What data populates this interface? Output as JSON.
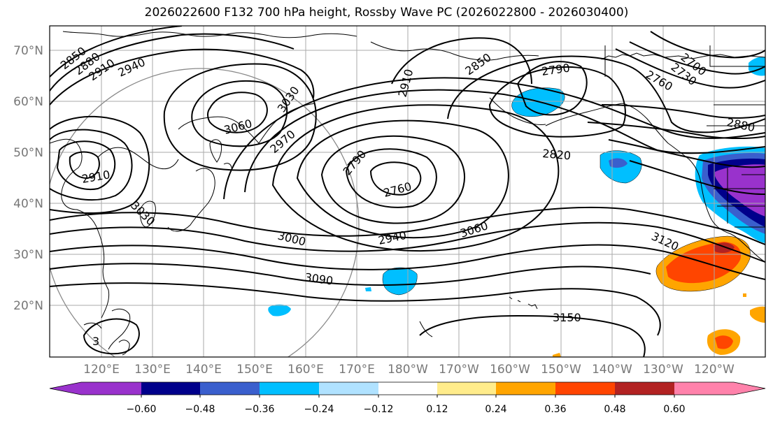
{
  "title": "2026022600 F132 700 hPa height, Rossby Wave PC (2026022800 - 2026030400)",
  "lat_labels": [
    "70°N",
    "60°N",
    "50°N",
    "40°N",
    "30°N",
    "20°N"
  ],
  "lon_labels": [
    "120°E",
    "130°E",
    "140°E",
    "150°E",
    "160°E",
    "170°E",
    "180°W",
    "170°W",
    "160°W",
    "150°W",
    "140°W",
    "130°W",
    "120°W"
  ],
  "colorbar": {
    "ticks": [
      "−0.60",
      "−0.48",
      "−0.36",
      "−0.24",
      "−0.12",
      "0.12",
      "0.24",
      "0.36",
      "0.48",
      "0.60"
    ],
    "colors": [
      "#9932cc",
      "#00008b",
      "#3a5fcd",
      "#00bfff",
      "#b0e2ff",
      "#ffffff",
      "#ffec8b",
      "#ffa500",
      "#ff4500",
      "#b22222",
      "#ff82ab"
    ]
  },
  "contour_labels": [
    {
      "id": "2850-nw",
      "text": "2850"
    },
    {
      "id": "2880-nw",
      "text": "2880"
    },
    {
      "id": "2910-nw",
      "text": "2910"
    },
    {
      "id": "2940-nw",
      "text": "2940"
    },
    {
      "id": "3060-ne-asia",
      "text": "3060"
    },
    {
      "id": "3030-kam",
      "text": "3030"
    },
    {
      "id": "2970-jpn",
      "text": "2970"
    },
    {
      "id": "2910-low",
      "text": "2910"
    },
    {
      "id": "3030-jpn",
      "text": "3030"
    },
    {
      "id": "2790-pac",
      "text": "2790"
    },
    {
      "id": "2760-pac",
      "text": "2760"
    },
    {
      "id": "2910-ber",
      "text": "2910"
    },
    {
      "id": "2850-ak",
      "text": "2850"
    },
    {
      "id": "2790-ak",
      "text": "2790"
    },
    {
      "id": "2760-can",
      "text": "2760"
    },
    {
      "id": "2730-can",
      "text": "2730"
    },
    {
      "id": "2700-can",
      "text": "2700"
    },
    {
      "id": "2880-nam",
      "text": "2880"
    },
    {
      "id": "2820-gulf",
      "text": "2820"
    },
    {
      "id": "3000-pac",
      "text": "3000"
    },
    {
      "id": "2940-pac",
      "text": "2940"
    },
    {
      "id": "3060-pac",
      "text": "3060"
    },
    {
      "id": "3120-pac",
      "text": "3120"
    },
    {
      "id": "3090-pac",
      "text": "3090"
    },
    {
      "id": "3150-pac",
      "text": "3150"
    },
    {
      "id": "3-sw",
      "text": "3"
    }
  ]
}
